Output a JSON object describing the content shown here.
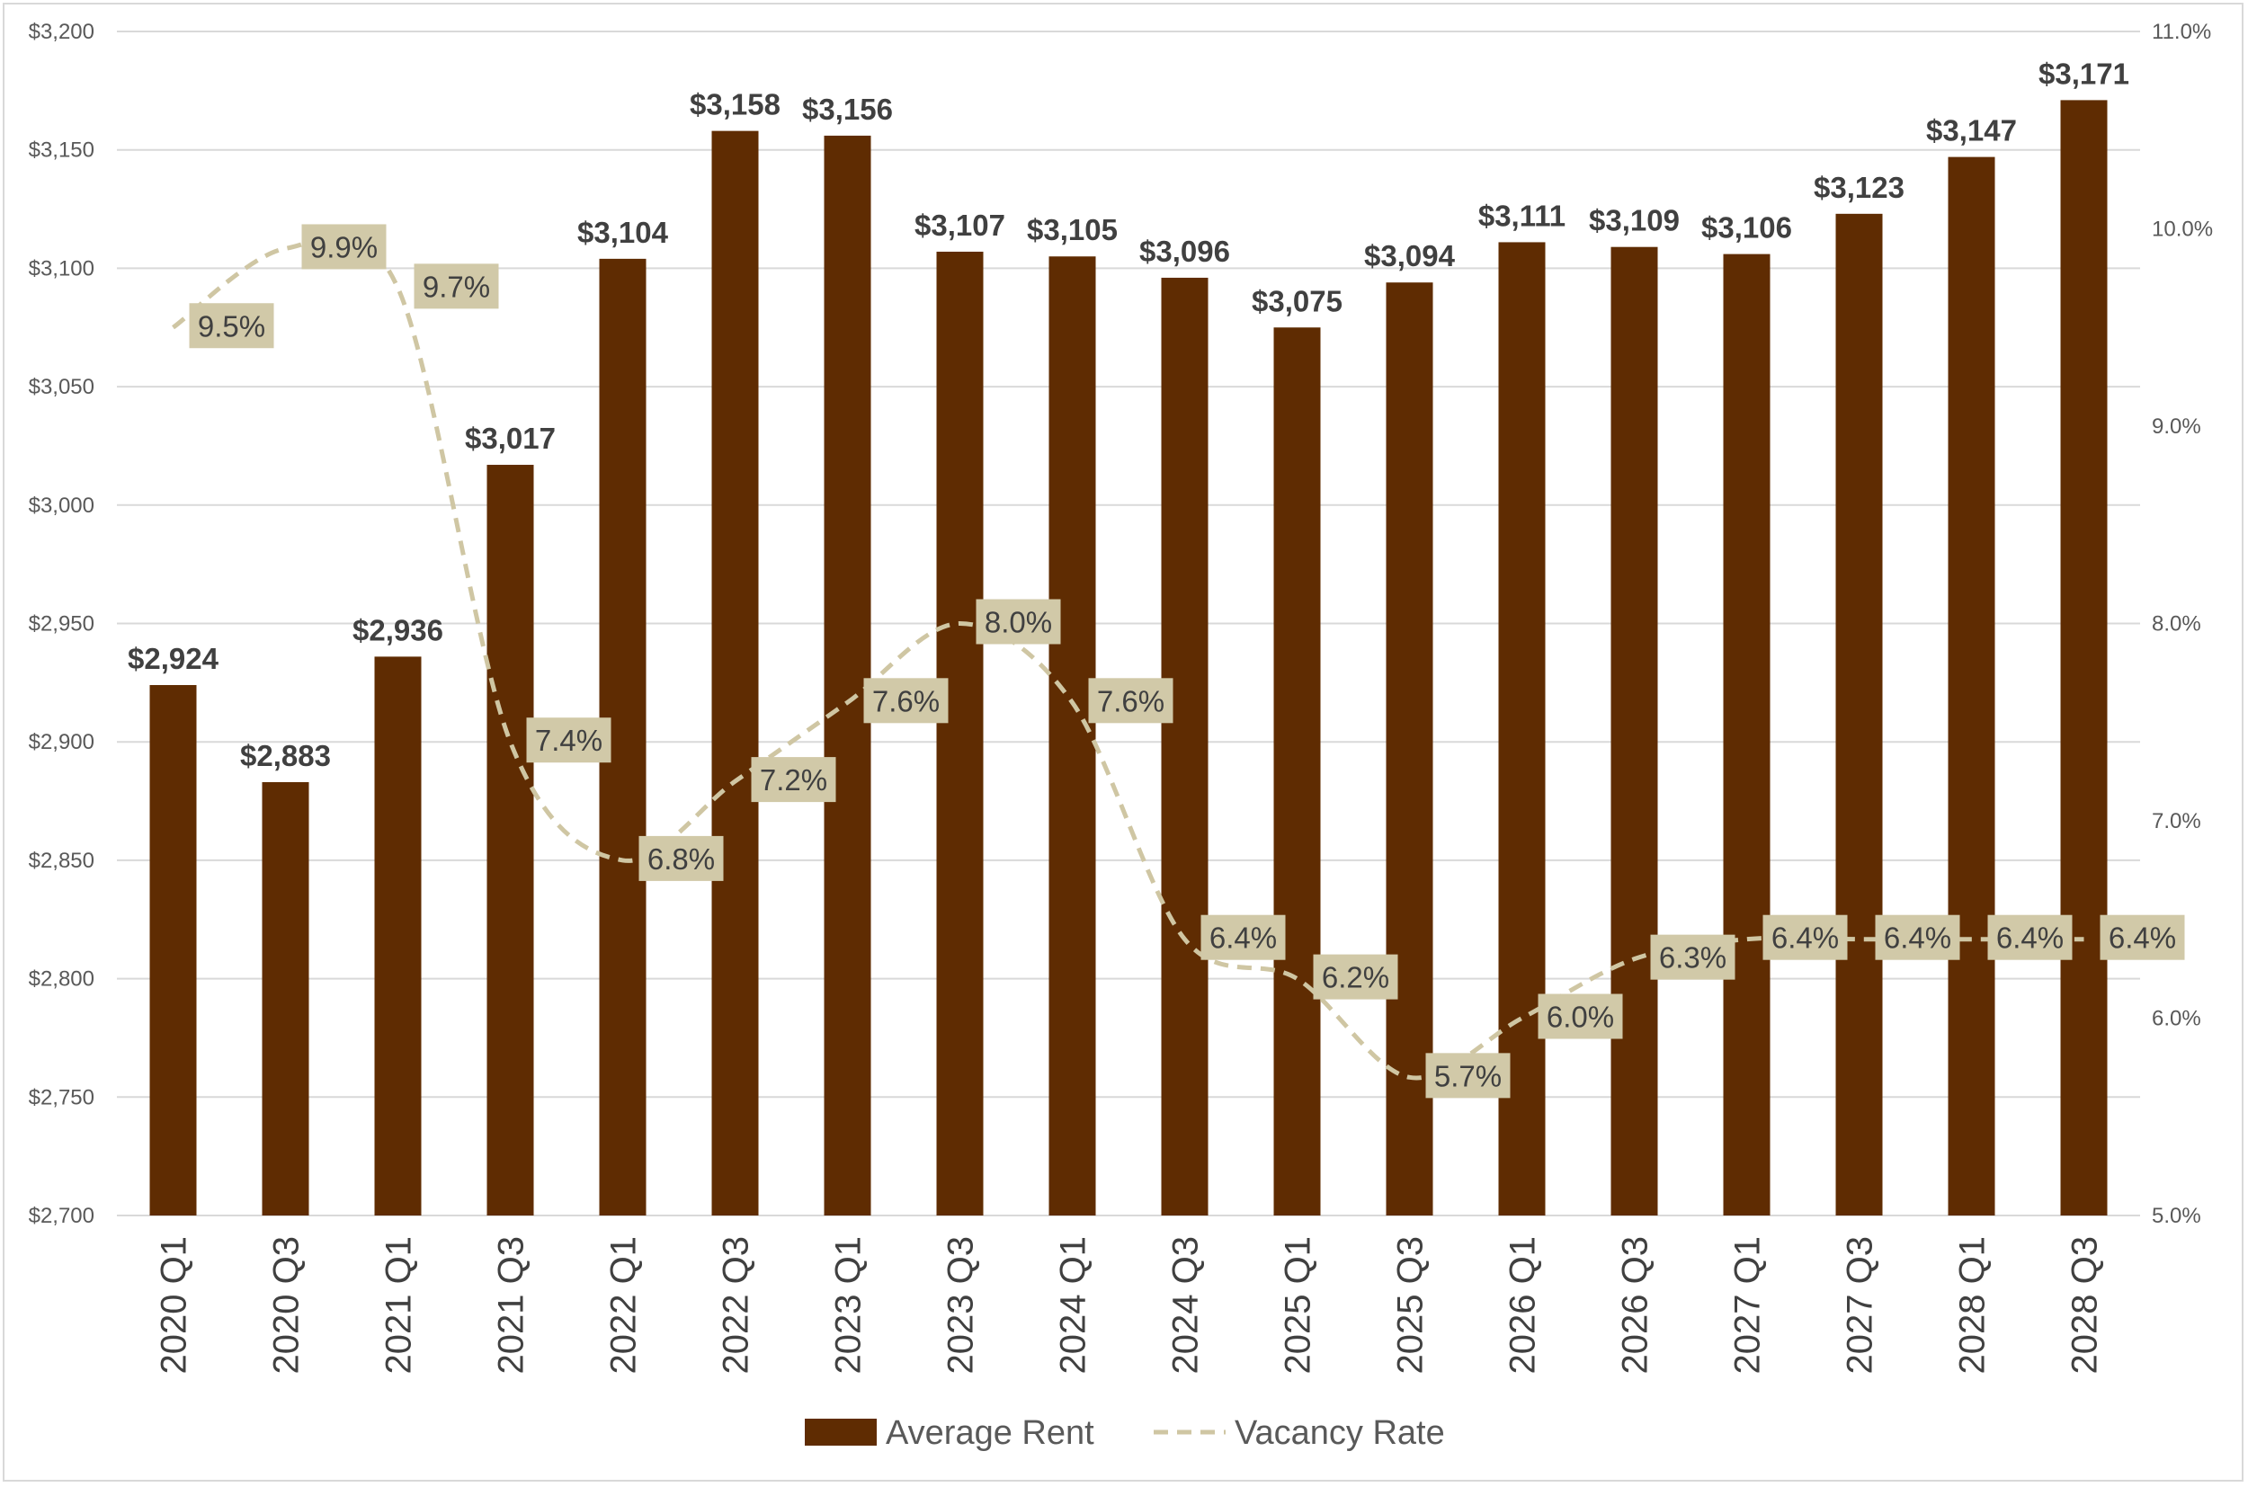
{
  "chart_data": {
    "type": "bar",
    "categories": [
      "2020 Q1",
      "2020 Q3",
      "2021 Q1",
      "2021 Q3",
      "2022 Q1",
      "2022 Q3",
      "2023 Q1",
      "2023 Q3",
      "2024 Q1",
      "2024 Q3",
      "2025 Q1",
      "2025 Q3",
      "2026 Q1",
      "2026 Q3",
      "2027 Q1",
      "2027 Q3",
      "2028 Q1",
      "2028 Q3"
    ],
    "series": [
      {
        "name": "Average Rent",
        "type": "bar",
        "axis": "left",
        "color": "#5f2c02",
        "values": [
          2924,
          2883,
          2936,
          3017,
          3104,
          3158,
          3156,
          3107,
          3105,
          3096,
          3075,
          3094,
          3111,
          3109,
          3106,
          3123,
          3147,
          3171
        ],
        "labels": [
          "$2,924",
          "$2,883",
          "$2,936",
          "$3,017",
          "$3,104",
          "$3,158",
          "$3,156",
          "$3,107",
          "$3,105",
          "$3,096",
          "$3,075",
          "$3,094",
          "$3,111",
          "$3,109",
          "$3,106",
          "$3,123",
          "$3,147",
          "$3,171"
        ]
      },
      {
        "name": "Vacancy Rate",
        "type": "line",
        "style": "dashed",
        "axis": "right",
        "color": "#cfc6a3",
        "label_background": "#d1c9a8",
        "values": [
          9.5,
          9.9,
          9.7,
          7.4,
          6.8,
          7.2,
          7.6,
          8.0,
          7.6,
          6.4,
          6.2,
          5.7,
          6.0,
          6.3,
          6.4,
          6.4,
          6.4,
          6.4
        ],
        "labels": [
          "9.5%",
          "9.9%",
          "9.7%",
          "7.4%",
          "6.8%",
          "7.2%",
          "7.6%",
          "8.0%",
          "7.6%",
          "6.4%",
          "6.2%",
          "5.7%",
          "6.0%",
          "6.3%",
          "6.4%",
          "6.4%",
          "6.4%",
          "6.4%"
        ]
      }
    ],
    "y_left": {
      "range": [
        2700,
        3200
      ],
      "ticks": [
        2700,
        2750,
        2800,
        2850,
        2900,
        2950,
        3000,
        3050,
        3100,
        3150,
        3200
      ],
      "tick_labels": [
        "$2,700",
        "$2,750",
        "$2,800",
        "$2,850",
        "$2,900",
        "$2,950",
        "$3,000",
        "$3,050",
        "$3,100",
        "$3,150",
        "$3,200"
      ]
    },
    "y_right": {
      "range": [
        5.0,
        11.0
      ],
      "ticks": [
        5,
        6,
        7,
        8,
        9,
        10,
        11
      ],
      "tick_labels": [
        "5.0%",
        "6.0%",
        "7.0%",
        "8.0%",
        "9.0%",
        "10.0%",
        "11.0%"
      ]
    },
    "grid": true,
    "legend_position": "bottom",
    "legend": [
      {
        "name": "Average Rent",
        "marker": "bar"
      },
      {
        "name": "Vacancy Rate",
        "marker": "dashed-line"
      }
    ]
  }
}
